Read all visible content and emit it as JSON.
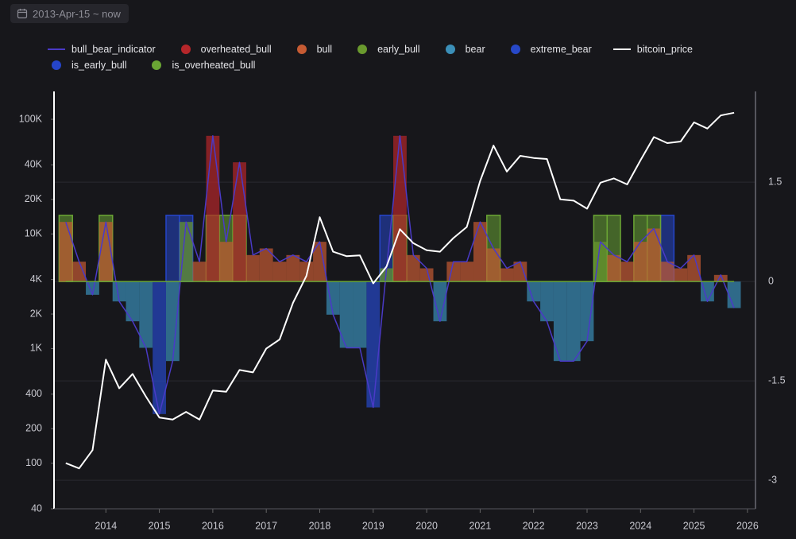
{
  "date_range": "2013-Apr-15 ~ now",
  "chart_data": {
    "type": "line",
    "log_y": true,
    "grid": true,
    "x": [
      2013.25,
      2013.5,
      2013.75,
      2014,
      2014.25,
      2014.5,
      2014.75,
      2015,
      2015.25,
      2015.5,
      2015.75,
      2016,
      2016.25,
      2016.5,
      2016.75,
      2017,
      2017.25,
      2017.5,
      2017.75,
      2018,
      2018.25,
      2018.5,
      2018.75,
      2019,
      2019.25,
      2019.5,
      2019.75,
      2020,
      2020.25,
      2020.5,
      2020.75,
      2021,
      2021.25,
      2021.5,
      2021.75,
      2022,
      2022.25,
      2022.5,
      2022.75,
      2023,
      2023.25,
      2023.5,
      2023.75,
      2024,
      2024.25,
      2024.5,
      2024.75,
      2025,
      2025.25,
      2025.5,
      2025.75
    ],
    "xlim": [
      2013.03,
      2026.15
    ],
    "xticks": [
      2014,
      2015,
      2016,
      2017,
      2018,
      2019,
      2020,
      2021,
      2022,
      2023,
      2024,
      2025,
      2026
    ],
    "ylim": [
      40,
      175000
    ],
    "yticks": [
      40,
      100,
      200,
      400,
      {
        "value": 1000,
        "label": "1K"
      },
      {
        "value": 2000,
        "label": "2K"
      },
      {
        "value": 4000,
        "label": "4K"
      },
      {
        "value": 10000,
        "label": "10K"
      },
      {
        "value": 20000,
        "label": "20K"
      },
      {
        "value": 40000,
        "label": "40K"
      },
      {
        "value": 100000,
        "label": "100K"
      }
    ],
    "y2lim": [
      -3.43,
      2.87
    ],
    "y2ticks": [
      -3,
      -1.5,
      0,
      1.5
    ],
    "series": [
      {
        "name": "bull_bear_indicator",
        "color": "#4a3ac7",
        "style": "line",
        "axis": "y2",
        "values": [
          0.9,
          0.3,
          -0.2,
          0.9,
          -0.3,
          -0.6,
          -1.0,
          -2.0,
          -1.2,
          0.9,
          0.3,
          2.2,
          0.6,
          1.8,
          0.4,
          0.5,
          0.3,
          0.4,
          0.3,
          0.6,
          -0.5,
          -1.0,
          -1.0,
          -1.9,
          0.2,
          2.2,
          0.4,
          0.2,
          -0.6,
          0.3,
          0.3,
          0.9,
          0.5,
          0.2,
          0.3,
          -0.3,
          -0.6,
          -1.2,
          -1.2,
          -0.9,
          0.6,
          0.4,
          0.3,
          0.6,
          0.8,
          0.3,
          0.2,
          0.4,
          -0.3,
          0.1,
          -0.4
        ]
      },
      {
        "name": "overheated_bull",
        "color": "#b5262a",
        "style": "area",
        "axis": "y2",
        "values": [
          null,
          null,
          null,
          null,
          null,
          null,
          null,
          null,
          null,
          null,
          null,
          2.2,
          null,
          1.8,
          null,
          null,
          null,
          null,
          null,
          null,
          null,
          null,
          null,
          null,
          null,
          2.2,
          null,
          null,
          null,
          null,
          null,
          null,
          null,
          null,
          null,
          null,
          null,
          null,
          null,
          null,
          null,
          null,
          null,
          null,
          null,
          null,
          null,
          null,
          null,
          null,
          null
        ]
      },
      {
        "name": "bull",
        "color": "#c65b33",
        "style": "area",
        "axis": "y2",
        "values": [
          0.9,
          0.3,
          null,
          0.9,
          null,
          null,
          null,
          null,
          null,
          null,
          0.3,
          null,
          0.6,
          null,
          0.4,
          0.5,
          0.3,
          0.4,
          0.3,
          0.6,
          null,
          null,
          null,
          null,
          null,
          null,
          0.4,
          0.2,
          null,
          0.3,
          0.3,
          0.9,
          0.5,
          0.2,
          0.3,
          null,
          null,
          null,
          null,
          null,
          null,
          0.4,
          0.3,
          0.6,
          0.8,
          0.3,
          0.2,
          0.4,
          null,
          0.1,
          null
        ]
      },
      {
        "name": "early_bull",
        "color": "#6a9a2e",
        "style": "area",
        "axis": "y2",
        "values": [
          null,
          null,
          null,
          null,
          null,
          null,
          null,
          null,
          null,
          0.9,
          null,
          null,
          null,
          null,
          null,
          null,
          null,
          null,
          null,
          null,
          null,
          null,
          null,
          null,
          0.2,
          null,
          null,
          null,
          null,
          null,
          null,
          null,
          null,
          null,
          null,
          null,
          null,
          null,
          null,
          null,
          0.6,
          null,
          null,
          null,
          null,
          null,
          null,
          null,
          null,
          null,
          null
        ]
      },
      {
        "name": "bear",
        "color": "#3b8fb8",
        "style": "area",
        "axis": "y2",
        "values": [
          null,
          null,
          -0.2,
          null,
          -0.3,
          -0.6,
          -1.0,
          null,
          -1.2,
          null,
          null,
          null,
          null,
          null,
          null,
          null,
          null,
          null,
          null,
          null,
          -0.5,
          -1.0,
          -1.0,
          null,
          null,
          null,
          null,
          null,
          -0.6,
          null,
          null,
          null,
          null,
          null,
          null,
          -0.3,
          -0.6,
          -1.2,
          -1.2,
          -0.9,
          null,
          null,
          null,
          null,
          null,
          null,
          null,
          null,
          -0.3,
          null,
          -0.4
        ]
      },
      {
        "name": "extreme_bear",
        "color": "#2748c8",
        "style": "area",
        "axis": "y2",
        "values": [
          null,
          null,
          null,
          null,
          null,
          null,
          null,
          -2.0,
          null,
          null,
          null,
          null,
          null,
          null,
          null,
          null,
          null,
          null,
          null,
          null,
          null,
          null,
          null,
          -1.9,
          null,
          null,
          null,
          null,
          null,
          null,
          null,
          null,
          null,
          null,
          null,
          null,
          null,
          null,
          null,
          null,
          null,
          null,
          null,
          null,
          null,
          null,
          null,
          null,
          null,
          null,
          null
        ]
      },
      {
        "name": "bitcoin_price",
        "color": "#ffffff",
        "style": "line",
        "axis": "y",
        "values": [
          100,
          90,
          130,
          800,
          450,
          600,
          380,
          250,
          240,
          280,
          240,
          430,
          420,
          650,
          620,
          1000,
          1200,
          2500,
          4300,
          14000,
          7000,
          6400,
          6500,
          3700,
          5200,
          11000,
          8300,
          7200,
          7000,
          9200,
          11500,
          29000,
          59000,
          35000,
          48000,
          46000,
          45000,
          20000,
          19500,
          16600,
          28000,
          30500,
          27000,
          44000,
          70000,
          62000,
          64000,
          94000,
          83000,
          108000,
          114000
        ]
      },
      {
        "name": "is_early_bull",
        "color": "#2545c9",
        "style": "flag",
        "axis": "y2",
        "values": [
          null,
          null,
          null,
          null,
          null,
          null,
          null,
          null,
          1,
          1,
          null,
          null,
          null,
          null,
          null,
          null,
          null,
          null,
          null,
          null,
          null,
          null,
          null,
          null,
          1,
          null,
          null,
          null,
          null,
          null,
          null,
          null,
          null,
          null,
          null,
          null,
          null,
          null,
          null,
          null,
          null,
          null,
          null,
          null,
          null,
          1,
          null,
          null,
          null,
          null,
          null
        ]
      },
      {
        "name": "is_overheated_bull",
        "color": "#6aa534",
        "style": "flag",
        "axis": "y2",
        "values": [
          1,
          null,
          null,
          1,
          null,
          null,
          null,
          null,
          null,
          null,
          null,
          1,
          1,
          1,
          null,
          null,
          null,
          null,
          null,
          null,
          null,
          null,
          null,
          null,
          null,
          1,
          null,
          null,
          null,
          null,
          null,
          null,
          1,
          null,
          null,
          null,
          null,
          null,
          null,
          null,
          1,
          1,
          null,
          1,
          1,
          null,
          null,
          null,
          null,
          null,
          null
        ]
      }
    ]
  }
}
